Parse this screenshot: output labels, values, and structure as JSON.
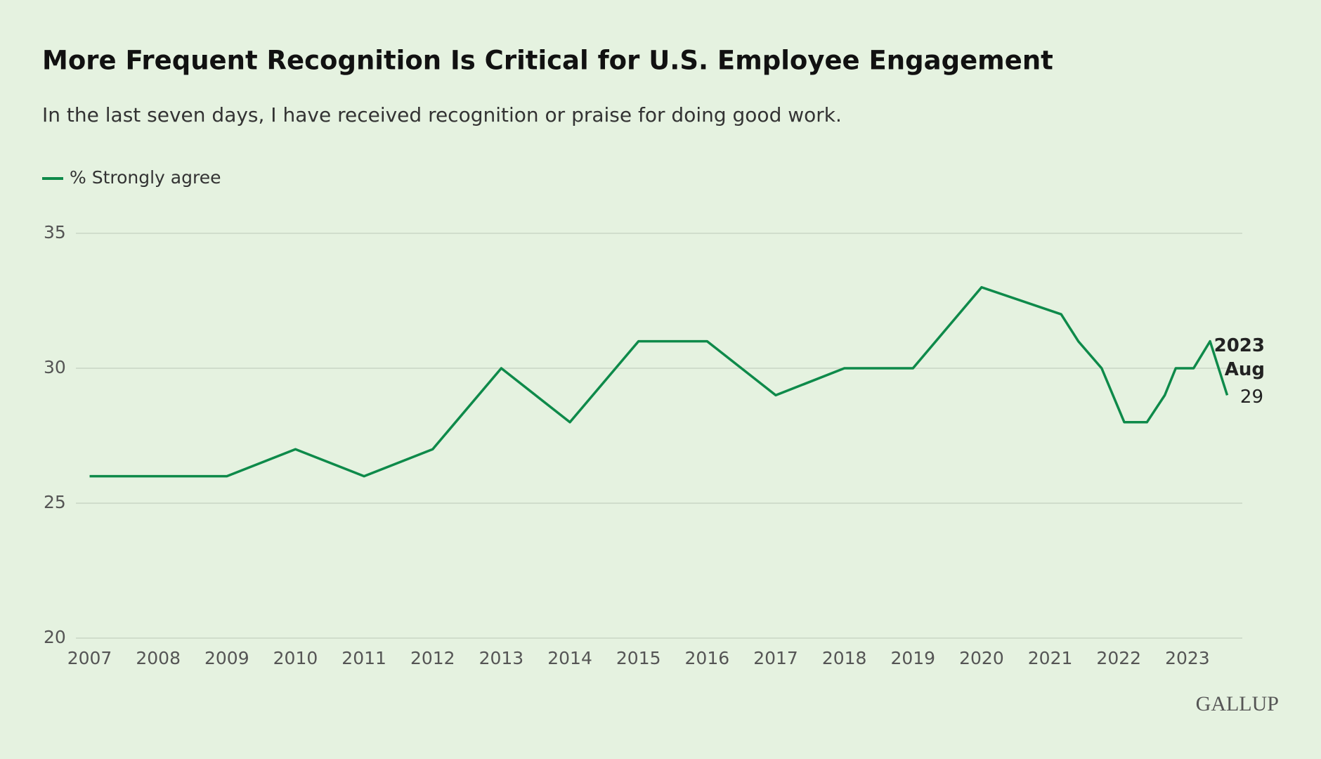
{
  "chart_data": {
    "type": "line",
    "title": "More Frequent Recognition Is Critical for U.S. Employee Engagement",
    "subtitle": "In the last seven days, I have received recognition or praise for doing good work.",
    "x": [
      2007,
      2009,
      2010,
      2011,
      2012,
      2013,
      2014,
      2015,
      2016,
      2017,
      2018,
      2019,
      2020,
      2021.16,
      2021.41,
      2021.75,
      2022.08,
      2022.41,
      2022.67,
      2022.83,
      2023.09,
      2023.33,
      2023.58
    ],
    "series": [
      {
        "name": "% Strongly agree",
        "color": "#0e8a4a",
        "values": [
          26,
          26,
          27,
          26,
          27,
          30,
          28,
          31,
          31,
          29,
          30,
          30,
          33,
          32,
          31,
          30,
          28,
          28,
          29,
          30,
          30,
          31,
          29
        ]
      }
    ],
    "xlim": [
      2006.8,
      2023.8
    ],
    "xticks": [
      2007,
      2008,
      2009,
      2010,
      2011,
      2012,
      2013,
      2014,
      2015,
      2016,
      2017,
      2018,
      2019,
      2020,
      2021,
      2022,
      2023
    ],
    "ylim": [
      20,
      35
    ],
    "yticks": [
      20,
      25,
      30,
      35
    ],
    "grid": true,
    "legend": "top-left",
    "annotation": [
      "2023",
      "Aug"
    ],
    "brand": "GALLUP"
  }
}
